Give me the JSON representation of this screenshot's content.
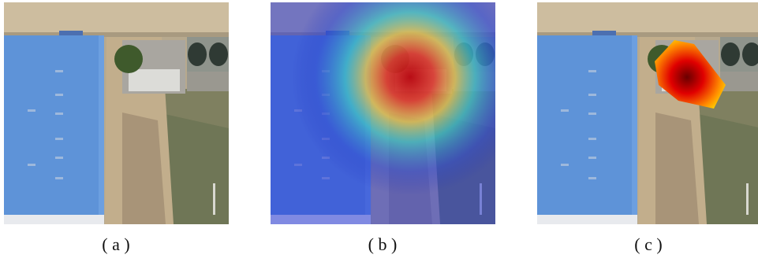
{
  "panels": [
    {
      "label": "( a )"
    },
    {
      "label": "( b )"
    },
    {
      "label": "( c )"
    }
  ]
}
